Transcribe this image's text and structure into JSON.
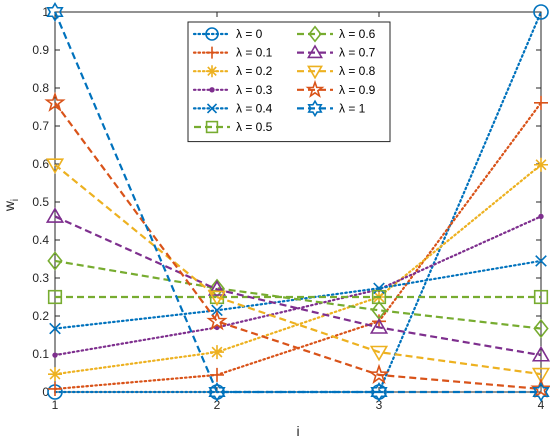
{
  "chart_data": {
    "type": "line",
    "title": "",
    "xlabel": "i",
    "ylabel": "w",
    "ylabel_subscript": "i",
    "x": [
      1,
      2,
      3,
      4
    ],
    "xlim": [
      1,
      4
    ],
    "ylim": [
      0,
      1
    ],
    "xticks": [
      "1",
      "2",
      "3",
      "4"
    ],
    "yticks": [
      "0",
      "0.1",
      "0.2",
      "0.3",
      "0.4",
      "0.5",
      "0.6",
      "0.7",
      "0.8",
      "0.9",
      "1"
    ],
    "grid": false,
    "legend_position": "top-center",
    "legend_columns": 2,
    "series": [
      {
        "name": "λ = 0",
        "values": [
          0.0,
          0.0,
          0.0,
          1.0
        ],
        "color": "#0072BD",
        "marker": "circle",
        "dash": "dotted"
      },
      {
        "name": "λ = 0.1",
        "values": [
          0.008,
          0.045,
          0.186,
          0.761
        ],
        "color": "#D95319",
        "marker": "plus",
        "dash": "dotted"
      },
      {
        "name": "λ = 0.2",
        "values": [
          0.047,
          0.105,
          0.25,
          0.598
        ],
        "color": "#EDB120",
        "marker": "asterisk",
        "dash": "dotted"
      },
      {
        "name": "λ = 0.3",
        "values": [
          0.097,
          0.17,
          0.27,
          0.462
        ],
        "color": "#7E2F8E",
        "marker": "point",
        "dash": "dotted"
      },
      {
        "name": "λ = 0.4",
        "values": [
          0.167,
          0.215,
          0.273,
          0.345
        ],
        "color": "#0072BD",
        "marker": "x",
        "dash": "dotted"
      },
      {
        "name": "λ = 0.5",
        "values": [
          0.25,
          0.25,
          0.25,
          0.25
        ],
        "color": "#77AC30",
        "marker": "square",
        "dash": "dashed"
      },
      {
        "name": "λ = 0.6",
        "values": [
          0.345,
          0.273,
          0.215,
          0.167
        ],
        "color": "#77AC30",
        "marker": "diamond",
        "dash": "dashed"
      },
      {
        "name": "λ = 0.7",
        "values": [
          0.462,
          0.27,
          0.17,
          0.097
        ],
        "color": "#7E2F8E",
        "marker": "triangle-up",
        "dash": "dashed"
      },
      {
        "name": "λ = 0.8",
        "values": [
          0.598,
          0.25,
          0.105,
          0.047
        ],
        "color": "#EDB120",
        "marker": "triangle-down",
        "dash": "dashed"
      },
      {
        "name": "λ = 0.9",
        "values": [
          0.761,
          0.186,
          0.045,
          0.008
        ],
        "color": "#D95319",
        "marker": "pentagram",
        "dash": "dashed"
      },
      {
        "name": "λ = 1",
        "values": [
          1.0,
          0.0,
          0.0,
          0.0
        ],
        "color": "#0072BD",
        "marker": "hexagram",
        "dash": "dashed"
      }
    ]
  }
}
